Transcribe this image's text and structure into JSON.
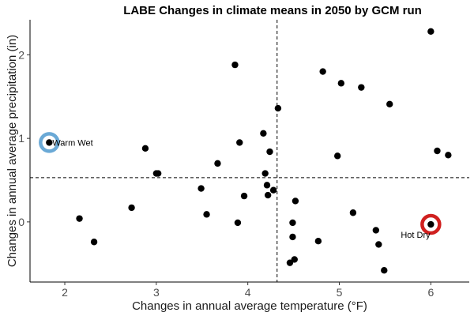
{
  "chart_data": {
    "type": "scatter",
    "title": "LABE Changes in climate means in 2050 by GCM run",
    "xlabel": "Changes in annual average temperature (°F)",
    "ylabel": "Changes in annual average precipitation (in)",
    "xlim": [
      1.62,
      6.42
    ],
    "ylim": [
      -0.72,
      2.42
    ],
    "xticks": [
      2,
      3,
      4,
      5,
      6
    ],
    "yticks": [
      0,
      1,
      2
    ],
    "grid": false,
    "reference_lines": {
      "vertical_x": 4.32,
      "horizontal_y": 0.53
    },
    "points": [
      {
        "x": 1.83,
        "y": 0.95
      },
      {
        "x": 2.16,
        "y": 0.04
      },
      {
        "x": 2.32,
        "y": -0.24
      },
      {
        "x": 2.73,
        "y": 0.17
      },
      {
        "x": 2.88,
        "y": 0.88
      },
      {
        "x": 3.0,
        "y": 0.58
      },
      {
        "x": 3.02,
        "y": 0.58
      },
      {
        "x": 3.49,
        "y": 0.4
      },
      {
        "x": 3.55,
        "y": 0.09
      },
      {
        "x": 3.67,
        "y": 0.7
      },
      {
        "x": 3.86,
        "y": 1.88
      },
      {
        "x": 3.89,
        "y": -0.01
      },
      {
        "x": 3.91,
        "y": 0.95
      },
      {
        "x": 3.96,
        "y": 0.31
      },
      {
        "x": 4.17,
        "y": 1.06
      },
      {
        "x": 4.19,
        "y": 0.58
      },
      {
        "x": 4.21,
        "y": 0.44
      },
      {
        "x": 4.22,
        "y": 0.32
      },
      {
        "x": 4.24,
        "y": 0.84
      },
      {
        "x": 4.28,
        "y": 0.38
      },
      {
        "x": 4.33,
        "y": 1.36
      },
      {
        "x": 4.46,
        "y": -0.49
      },
      {
        "x": 4.49,
        "y": -0.18
      },
      {
        "x": 4.49,
        "y": -0.01
      },
      {
        "x": 4.51,
        "y": -0.45
      },
      {
        "x": 4.52,
        "y": 0.25
      },
      {
        "x": 4.77,
        "y": -0.23
      },
      {
        "x": 4.82,
        "y": 1.8
      },
      {
        "x": 4.98,
        "y": 0.79
      },
      {
        "x": 5.02,
        "y": 1.66
      },
      {
        "x": 5.15,
        "y": 0.11
      },
      {
        "x": 5.24,
        "y": 1.61
      },
      {
        "x": 5.4,
        "y": -0.1
      },
      {
        "x": 5.43,
        "y": -0.27
      },
      {
        "x": 5.49,
        "y": -0.58
      },
      {
        "x": 5.55,
        "y": 1.41
      },
      {
        "x": 6.0,
        "y": -0.03
      },
      {
        "x": 6.0,
        "y": 2.28
      },
      {
        "x": 6.07,
        "y": 0.85
      },
      {
        "x": 6.19,
        "y": 0.8
      }
    ],
    "annotations": [
      {
        "label": "Warm Wet",
        "x": 1.83,
        "y": 0.95,
        "ring_color": "#6aa9d6",
        "label_side": "right"
      },
      {
        "label": "Hot Dry",
        "x": 6.0,
        "y": -0.03,
        "ring_color": "#d0201f",
        "label_side": "left-below"
      }
    ]
  }
}
